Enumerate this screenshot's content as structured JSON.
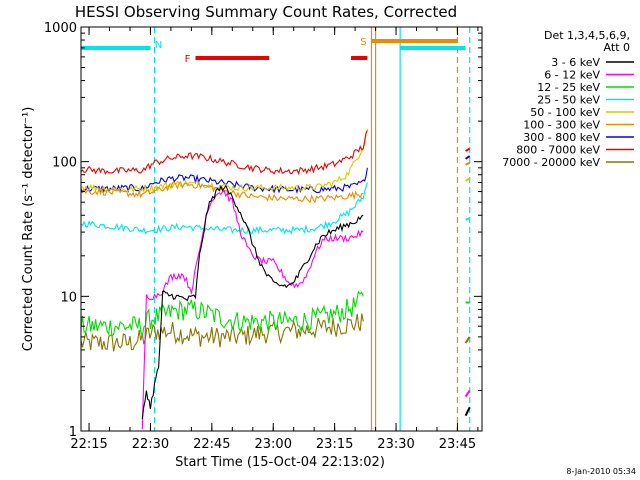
{
  "chart_data": {
    "type": "line",
    "title": "HESSI Observing Summary Count Rates, Corrected",
    "xlabel": "Start Time (15-Oct-04 22:13:02)",
    "ylabel": "Corrected Count Rate (s⁻¹ detector⁻¹)",
    "yscale": "log",
    "ylim": [
      1,
      1000
    ],
    "xlim": [
      "22:13:02",
      "23:51:00"
    ],
    "x_ticks": [
      "22:15",
      "22:30",
      "22:45",
      "23:00",
      "23:15",
      "23:30",
      "23:45"
    ],
    "y_ticks": [
      "1",
      "10",
      "100",
      "1000"
    ],
    "legend_title": "Det 1,3,4,5,6,9,",
    "legend_subtitle": "Att 0",
    "legend_position": "right",
    "timestamp": "8-Jan-2010 05:34",
    "flags": [
      {
        "label": "N",
        "color": "#00e5e5",
        "segments": [
          [
            "22:13",
            "22:30"
          ],
          [
            "23:31",
            "23:47"
          ]
        ]
      },
      {
        "label": "F",
        "color": "#ee0000",
        "segments": [
          [
            "22:41",
            "22:59"
          ],
          [
            "23:19",
            "23:23"
          ]
        ]
      },
      {
        "label": "S",
        "color": "#ee8a00",
        "segments": [
          [
            "23:24",
            "23:45"
          ]
        ]
      }
    ],
    "vertical_lines": [
      {
        "time": "22:31",
        "color": "#00e5e5",
        "style": "dashed"
      },
      {
        "time": "23:24",
        "color": "#ee8a00",
        "style": "solid"
      },
      {
        "time": "23:25",
        "color": "#ee8a00",
        "style": "solid"
      },
      {
        "time": "23:31",
        "color": "#00e5e5",
        "style": "solid"
      },
      {
        "time": "23:45",
        "color": "#ee8a00",
        "style": "dashed"
      },
      {
        "time": "23:48",
        "color": "#00e5e5",
        "style": "dashed"
      }
    ],
    "series": [
      {
        "name": "3 - 6 keV",
        "color": "#000000",
        "points": [
          [
            "22:28",
            1.2
          ],
          [
            "22:29",
            2
          ],
          [
            "22:30",
            1.5
          ],
          [
            "22:31",
            2.2
          ],
          [
            "22:32",
            3
          ],
          [
            "22:33",
            10.5
          ],
          [
            "22:36",
            10
          ],
          [
            "22:39",
            9.5
          ],
          [
            "22:41",
            10
          ],
          [
            "22:42",
            20
          ],
          [
            "22:44",
            45
          ],
          [
            "22:46",
            60
          ],
          [
            "22:48",
            65
          ],
          [
            "22:50",
            55
          ],
          [
            "22:52",
            42
          ],
          [
            "22:54",
            30
          ],
          [
            "22:56",
            20
          ],
          [
            "22:58",
            15
          ],
          [
            "23:00",
            12.5
          ],
          [
            "23:02",
            12
          ],
          [
            "23:04",
            12
          ],
          [
            "23:06",
            14
          ],
          [
            "23:08",
            18
          ],
          [
            "23:10",
            23
          ],
          [
            "23:12",
            28
          ],
          [
            "23:14",
            30
          ],
          [
            "23:16",
            32
          ],
          [
            "23:18",
            34
          ],
          [
            "23:20",
            36
          ],
          [
            "23:22",
            40
          ]
        ],
        "late": [
          [
            "23:47",
            1.3
          ],
          [
            "23:48",
            1.5
          ]
        ]
      },
      {
        "name": "6 - 12 keV",
        "color": "#ff00ff",
        "points": [
          [
            "22:28",
            1
          ],
          [
            "22:29",
            10
          ],
          [
            "22:31",
            10
          ],
          [
            "22:33",
            11
          ],
          [
            "22:35",
            14
          ],
          [
            "22:38",
            14.5
          ],
          [
            "22:40",
            11
          ],
          [
            "22:42",
            22
          ],
          [
            "22:44",
            45
          ],
          [
            "22:46",
            58
          ],
          [
            "22:48",
            60
          ],
          [
            "22:50",
            50
          ],
          [
            "22:52",
            30
          ],
          [
            "22:54",
            22
          ],
          [
            "22:56",
            19
          ],
          [
            "22:58",
            18
          ],
          [
            "23:00",
            18
          ],
          [
            "23:02",
            15
          ],
          [
            "23:04",
            12.5
          ],
          [
            "23:06",
            12
          ],
          [
            "23:08",
            14
          ],
          [
            "23:10",
            20
          ],
          [
            "23:12",
            26
          ],
          [
            "23:14",
            27
          ],
          [
            "23:16",
            27
          ],
          [
            "23:18",
            27
          ],
          [
            "23:20",
            28
          ],
          [
            "23:22",
            30
          ]
        ],
        "late": [
          [
            "23:47",
            1.8
          ],
          [
            "23:48",
            2
          ]
        ]
      },
      {
        "name": "12 - 25 keV",
        "color": "#00dd00",
        "points": [
          [
            "22:13",
            6
          ],
          [
            "22:17",
            6
          ],
          [
            "22:21",
            6
          ],
          [
            "22:25",
            6
          ],
          [
            "22:28",
            6
          ],
          [
            "22:30",
            6.8
          ],
          [
            "22:33",
            7.2
          ],
          [
            "22:36",
            7.8
          ],
          [
            "22:40",
            8
          ],
          [
            "22:44",
            7.5
          ],
          [
            "22:48",
            6.8
          ],
          [
            "22:52",
            6.5
          ],
          [
            "22:56",
            6.5
          ],
          [
            "23:00",
            6.5
          ],
          [
            "23:04",
            6.5
          ],
          [
            "23:08",
            6.6
          ],
          [
            "23:12",
            7
          ],
          [
            "23:16",
            7.5
          ],
          [
            "23:20",
            8.5
          ],
          [
            "23:22",
            10
          ]
        ],
        "late": [
          [
            "23:47",
            9
          ],
          [
            "23:48",
            9
          ]
        ]
      },
      {
        "name": "25 - 50 keV",
        "color": "#00e5e5",
        "points": [
          [
            "22:13",
            35
          ],
          [
            "22:17",
            34
          ],
          [
            "22:21",
            33
          ],
          [
            "22:25",
            32
          ],
          [
            "22:28",
            31
          ],
          [
            "22:30",
            31
          ],
          [
            "22:34",
            32
          ],
          [
            "22:38",
            33
          ],
          [
            "22:42",
            32
          ],
          [
            "22:46",
            31.5
          ],
          [
            "22:50",
            31
          ],
          [
            "22:54",
            31
          ],
          [
            "22:58",
            31
          ],
          [
            "23:02",
            31
          ],
          [
            "23:06",
            31
          ],
          [
            "23:10",
            32
          ],
          [
            "23:14",
            35
          ],
          [
            "23:18",
            41
          ],
          [
            "23:20",
            47
          ],
          [
            "23:22",
            55
          ],
          [
            "23:23",
            70
          ]
        ],
        "late": [
          [
            "23:47",
            37
          ],
          [
            "23:48",
            38
          ]
        ]
      },
      {
        "name": "50 - 100 keV",
        "color": "#d8c800",
        "points": [
          [
            "22:13",
            65
          ],
          [
            "22:17",
            64
          ],
          [
            "22:21",
            63
          ],
          [
            "22:25",
            62
          ],
          [
            "22:28",
            63
          ],
          [
            "22:31",
            64
          ],
          [
            "22:35",
            68
          ],
          [
            "22:39",
            69
          ],
          [
            "22:43",
            68
          ],
          [
            "22:47",
            66
          ],
          [
            "22:51",
            64
          ],
          [
            "22:55",
            64
          ],
          [
            "22:59",
            64
          ],
          [
            "23:03",
            64
          ],
          [
            "23:07",
            64
          ],
          [
            "23:11",
            65
          ],
          [
            "23:15",
            70
          ],
          [
            "23:18",
            80
          ],
          [
            "23:20",
            100
          ],
          [
            "23:22",
            130
          ],
          [
            "23:23",
            175
          ]
        ],
        "late": [
          [
            "23:47",
            72
          ],
          [
            "23:48",
            75
          ]
        ]
      },
      {
        "name": "100 - 300 keV",
        "color": "#ee8a00",
        "points": [
          [
            "22:13",
            60
          ],
          [
            "22:17",
            60
          ],
          [
            "22:21",
            59
          ],
          [
            "22:25",
            58
          ],
          [
            "22:28",
            57
          ],
          [
            "22:31",
            60
          ],
          [
            "22:35",
            66
          ],
          [
            "22:39",
            68
          ],
          [
            "22:43",
            66
          ],
          [
            "22:47",
            62
          ],
          [
            "22:51",
            58
          ],
          [
            "22:55",
            55
          ],
          [
            "22:59",
            54
          ],
          [
            "23:03",
            53
          ],
          [
            "23:07",
            53
          ],
          [
            "23:11",
            53
          ],
          [
            "23:15",
            54
          ],
          [
            "23:19",
            56
          ],
          [
            "23:22",
            58
          ]
        ],
        "late": [
          [
            "23:47",
            95
          ],
          [
            "23:48",
            98
          ]
        ]
      },
      {
        "name": "300 - 800 keV",
        "color": "#0000ee",
        "points": [
          [
            "22:13",
            63
          ],
          [
            "22:17",
            63
          ],
          [
            "22:21",
            63
          ],
          [
            "22:25",
            64
          ],
          [
            "22:28",
            63
          ],
          [
            "22:31",
            70
          ],
          [
            "22:35",
            75
          ],
          [
            "22:39",
            76
          ],
          [
            "22:43",
            73
          ],
          [
            "22:47",
            70
          ],
          [
            "22:51",
            67
          ],
          [
            "22:55",
            64
          ],
          [
            "22:59",
            63
          ],
          [
            "23:03",
            62
          ],
          [
            "23:07",
            62
          ],
          [
            "23:11",
            62
          ],
          [
            "23:15",
            63
          ],
          [
            "23:19",
            65
          ],
          [
            "23:22",
            70
          ],
          [
            "23:23",
            90
          ]
        ],
        "late": [
          [
            "23:47",
            105
          ],
          [
            "23:48",
            110
          ]
        ]
      },
      {
        "name": "800 - 7000 keV",
        "color": "#ee0000",
        "points": [
          [
            "22:13",
            88
          ],
          [
            "22:17",
            86
          ],
          [
            "22:21",
            85
          ],
          [
            "22:25",
            86
          ],
          [
            "22:28",
            86
          ],
          [
            "22:31",
            98
          ],
          [
            "22:35",
            106
          ],
          [
            "22:39",
            111
          ],
          [
            "22:43",
            108
          ],
          [
            "22:47",
            101
          ],
          [
            "22:51",
            95
          ],
          [
            "22:55",
            90
          ],
          [
            "22:59",
            86
          ],
          [
            "23:03",
            85
          ],
          [
            "23:07",
            86
          ],
          [
            "23:11",
            90
          ],
          [
            "23:15",
            96
          ],
          [
            "23:19",
            110
          ],
          [
            "23:22",
            130
          ],
          [
            "23:23",
            170
          ]
        ],
        "late": [
          [
            "23:47",
            120
          ],
          [
            "23:48",
            125
          ]
        ]
      },
      {
        "name": "7000 - 20000 keV",
        "color": "#8b7300",
        "points": [
          [
            "22:13",
            4.5
          ],
          [
            "22:17",
            4.5
          ],
          [
            "22:21",
            4.5
          ],
          [
            "22:25",
            4.5
          ],
          [
            "22:28",
            4.8
          ],
          [
            "22:31",
            5.5
          ],
          [
            "22:35",
            5.5
          ],
          [
            "22:39",
            5.2
          ],
          [
            "22:43",
            5
          ],
          [
            "22:47",
            5
          ],
          [
            "22:51",
            5
          ],
          [
            "22:55",
            5.2
          ],
          [
            "22:59",
            5.4
          ],
          [
            "23:03",
            5.5
          ],
          [
            "23:07",
            5.6
          ],
          [
            "23:11",
            5.8
          ],
          [
            "23:15",
            6
          ],
          [
            "23:19",
            6.2
          ],
          [
            "23:22",
            6.5
          ]
        ],
        "late": [
          [
            "23:47",
            4.5
          ],
          [
            "23:48",
            5
          ]
        ]
      }
    ]
  }
}
